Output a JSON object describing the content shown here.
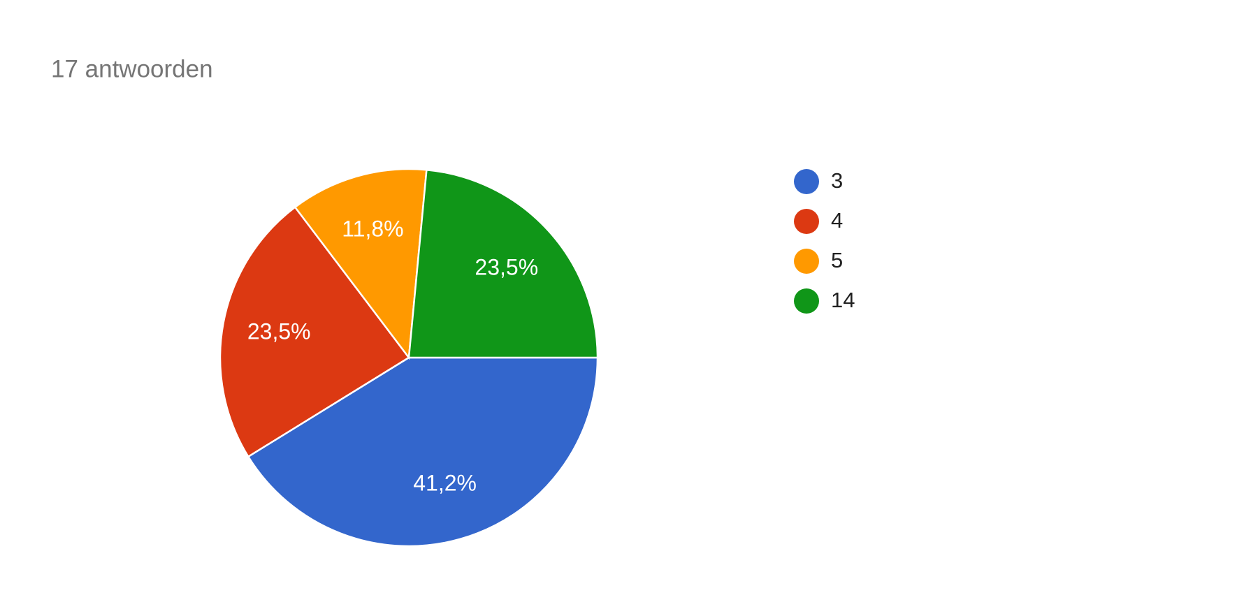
{
  "chart_data": {
    "type": "pie",
    "title": "17 antwoorden",
    "categories": [
      "3",
      "4",
      "5",
      "14"
    ],
    "values": [
      41.2,
      23.5,
      11.8,
      23.5
    ],
    "value_labels": [
      "41,2%",
      "23,5%",
      "11,8%",
      "23,5%"
    ],
    "colors": [
      "#3366cc",
      "#dc3912",
      "#ff9900",
      "#109618"
    ],
    "legend": "right"
  }
}
